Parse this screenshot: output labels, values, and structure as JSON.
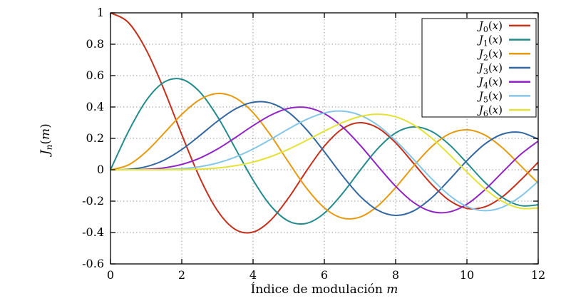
{
  "chart_data": {
    "type": "line",
    "title": "",
    "xlabel": {
      "text": "Índice de modulación",
      "var": "m"
    },
    "ylabel": {
      "func": "J",
      "sub": "n",
      "open": "(",
      "var": "m",
      "close": ")"
    },
    "xlim": [
      0,
      12
    ],
    "ylim": [
      -0.6,
      1
    ],
    "xticks": [
      "0",
      "2",
      "4",
      "6",
      "8",
      "10",
      "12"
    ],
    "yticks": [
      "-0.6",
      "-0.4",
      "-0.2",
      "0",
      "0.2",
      "0.4",
      "0.6",
      "0.8",
      "1"
    ],
    "grid": true,
    "legend_position": "top-right-inside",
    "x": [
      0,
      0.5,
      1,
      1.5,
      2,
      2.5,
      3,
      3.5,
      4,
      4.5,
      5,
      5.5,
      6,
      6.5,
      7,
      7.5,
      8,
      8.5,
      9,
      9.5,
      10,
      10.5,
      11,
      11.5,
      12
    ],
    "series": [
      {
        "label": "J_0(x)",
        "color": "#c4301c",
        "values": [
          1,
          0.9385,
          0.7652,
          0.5118,
          0.2239,
          -0.0484,
          -0.2601,
          -0.3801,
          -0.3971,
          -0.3205,
          -0.1776,
          -0.0068,
          0.1506,
          0.2601,
          0.3001,
          0.2663,
          0.1717,
          0.0419,
          -0.0903,
          -0.1939,
          -0.2459,
          -0.2366,
          -0.1712,
          -0.0677,
          0.0477
        ]
      },
      {
        "label": "J_1(x)",
        "color": "#238b8b",
        "values": [
          0,
          0.2423,
          0.4401,
          0.5579,
          0.5767,
          0.4971,
          0.3391,
          0.1374,
          -0.066,
          -0.2311,
          -0.3276,
          -0.3414,
          -0.2767,
          -0.1538,
          -0.0047,
          0.1352,
          0.2346,
          0.2731,
          0.2453,
          0.1613,
          0.0435,
          -0.0789,
          -0.1768,
          -0.2284,
          -0.2234
        ]
      },
      {
        "label": "J_2(x)",
        "color": "#e69a10",
        "values": [
          0,
          0.0306,
          0.1149,
          0.2321,
          0.3528,
          0.4461,
          0.4861,
          0.4586,
          0.3641,
          0.2178,
          0.0466,
          -0.1173,
          -0.2429,
          -0.3074,
          -0.3014,
          -0.2303,
          -0.113,
          0.0223,
          0.1448,
          0.2279,
          0.2546,
          0.2216,
          0.139,
          0.0279,
          -0.0849
        ]
      },
      {
        "label": "J_3(x)",
        "color": "#33679f",
        "values": [
          0,
          0.0026,
          0.0196,
          0.061,
          0.1289,
          0.2166,
          0.3091,
          0.3868,
          0.4302,
          0.4247,
          0.3648,
          0.2561,
          0.1148,
          -0.0353,
          -0.1676,
          -0.2581,
          -0.2911,
          -0.2626,
          -0.1809,
          -0.0653,
          0.0584,
          0.1633,
          0.2273,
          0.2381,
          0.1951
        ]
      },
      {
        "label": "J_4(x)",
        "color": "#9124c4",
        "values": [
          0,
          0.0002,
          0.0025,
          0.0118,
          0.034,
          0.0738,
          0.132,
          0.2044,
          0.2811,
          0.3484,
          0.3912,
          0.3967,
          0.3576,
          0.2748,
          0.1578,
          0.0238,
          -0.1054,
          -0.2077,
          -0.2655,
          -0.2691,
          -0.2196,
          -0.1283,
          -0.015,
          0.0963,
          0.1825
        ]
      },
      {
        "label": "J_5(x)",
        "color": "#85c6e8",
        "values": [
          0,
          0,
          0.0002,
          0.0018,
          0.007,
          0.0195,
          0.043,
          0.0804,
          0.1321,
          0.1947,
          0.2611,
          0.3209,
          0.3621,
          0.3736,
          0.3479,
          0.2835,
          0.1858,
          0.0671,
          -0.055,
          -0.1613,
          -0.2341,
          -0.2611,
          -0.2383,
          -0.1711,
          -0.0735
        ]
      },
      {
        "label": "J_6(x)",
        "color": "#e4e234",
        "values": [
          0,
          0,
          0,
          0.0003,
          0.0012,
          0.0042,
          0.0114,
          0.0254,
          0.0491,
          0.0843,
          0.131,
          0.1868,
          0.2458,
          0.3,
          0.3392,
          0.3542,
          0.3376,
          0.2867,
          0.2043,
          0.0993,
          -0.0145,
          -0.1204,
          -0.2016,
          -0.2451,
          -0.2437
        ]
      }
    ],
    "style": {
      "grid_color": "#9a9a9a",
      "axis_color": "#000000",
      "background": "#ffffff"
    }
  }
}
